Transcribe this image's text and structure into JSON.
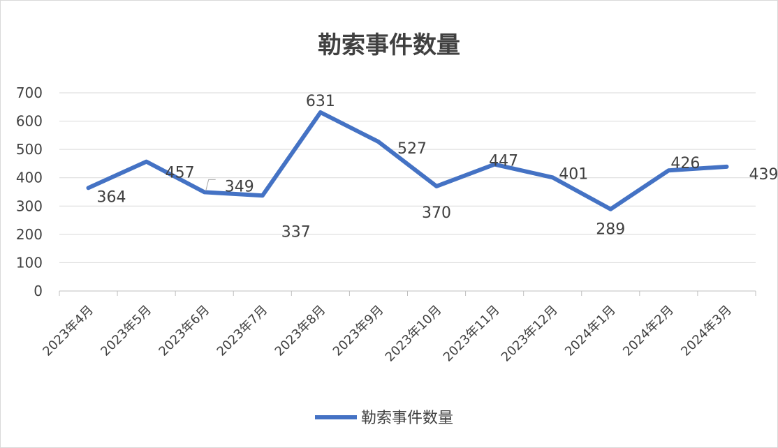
{
  "chart_data": {
    "type": "line",
    "title": "勒索事件数量",
    "categories": [
      "2023年4月",
      "2023年5月",
      "2023年6月",
      "2023年7月",
      "2023年8月",
      "2023年9月",
      "2023年10月",
      "2023年11月",
      "2023年12月",
      "2024年1月",
      "2024年2月",
      "2024年3月"
    ],
    "series": [
      {
        "name": "勒索事件数量",
        "values": [
          364,
          457,
          349,
          337,
          631,
          527,
          370,
          447,
          401,
          289,
          426,
          439
        ]
      }
    ],
    "ylim": [
      0,
      700
    ],
    "yticks": [
      "0",
      "100",
      "200",
      "300",
      "400",
      "500",
      "600",
      "700"
    ],
    "grid": true,
    "legend": "bottom",
    "line_color": "#4472c4"
  }
}
